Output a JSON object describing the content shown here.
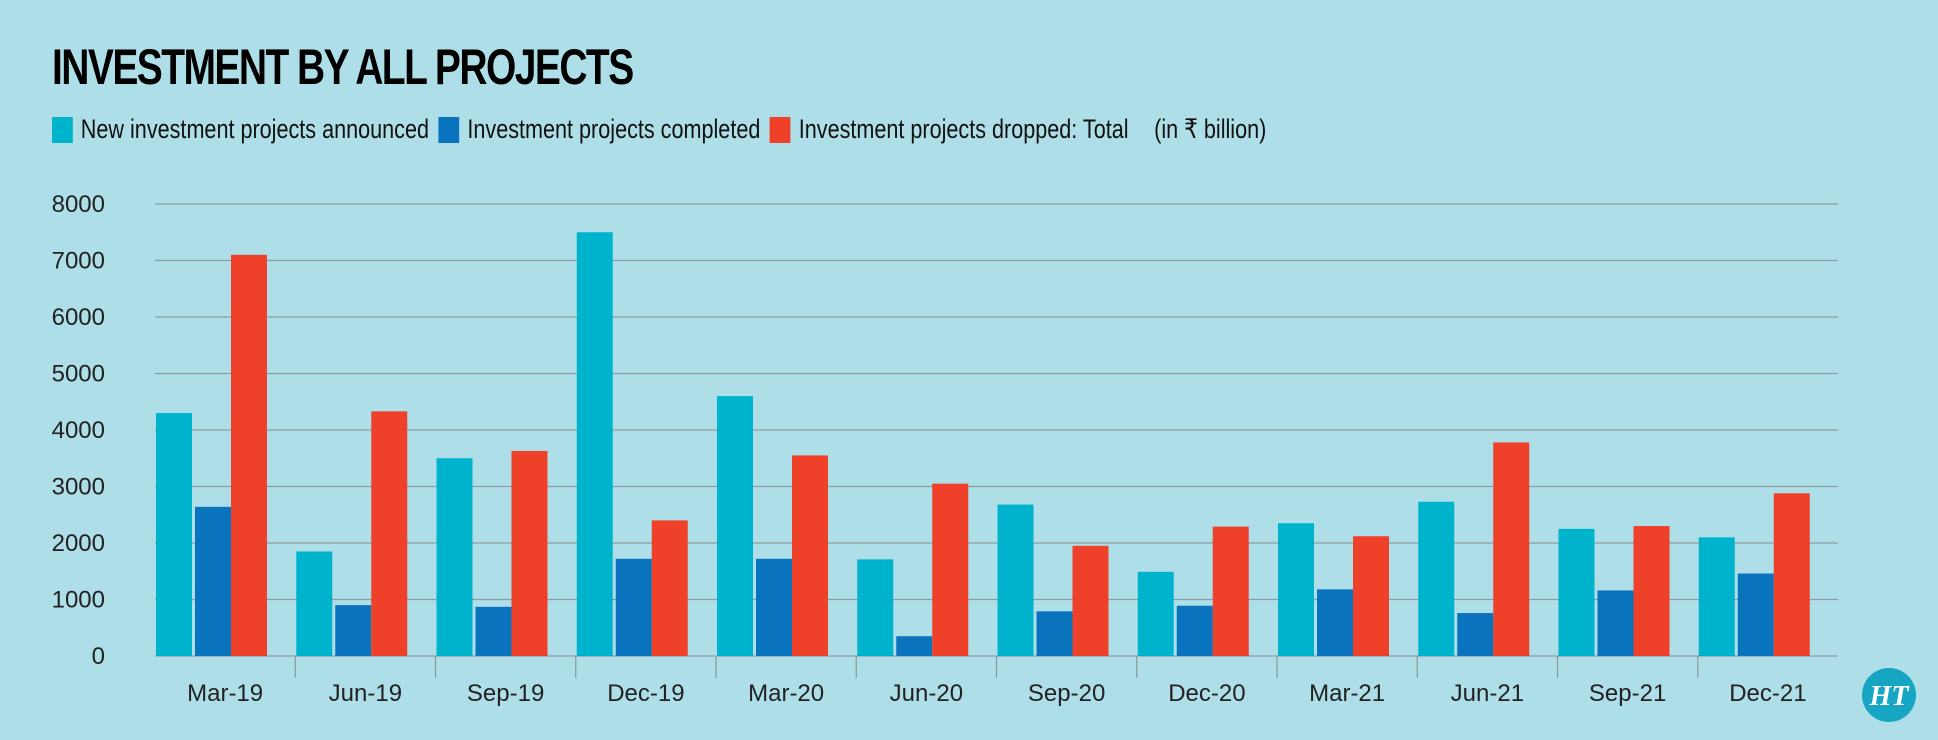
{
  "chart_data": {
    "type": "bar",
    "title": "INVESTMENT BY ALL PROJECTS",
    "unit_note": "(in ₹ billion)",
    "categories": [
      "Mar-19",
      "Jun-19",
      "Sep-19",
      "Dec-19",
      "Mar-20",
      "Jun-20",
      "Sep-20",
      "Dec-20",
      "Mar-21",
      "Jun-21",
      "Sep-21",
      "Dec-21"
    ],
    "series": [
      {
        "name": "New investment projects announced",
        "color": "#00b3cc",
        "values": [
          4300,
          1850,
          3500,
          7500,
          4600,
          1710,
          2680,
          1490,
          2350,
          2730,
          2250,
          2100
        ]
      },
      {
        "name": "Investment projects completed",
        "color": "#0a73bd",
        "values": [
          2640,
          900,
          870,
          1720,
          1720,
          350,
          790,
          890,
          1180,
          760,
          1160,
          1460
        ]
      },
      {
        "name": "Investment projects dropped: Total",
        "color": "#ef402a",
        "values": [
          7100,
          4330,
          3630,
          2400,
          3550,
          3050,
          1950,
          2290,
          2120,
          3780,
          2300,
          2880
        ]
      }
    ],
    "ylim": [
      0,
      8000
    ],
    "yticks": [
      "0",
      "1000",
      "2000",
      "3000",
      "4000",
      "5000",
      "6000",
      "7000",
      "8000"
    ],
    "grid": true,
    "legend": "top-left"
  },
  "logo": {
    "text": "HT",
    "color": "#16a6c3"
  }
}
